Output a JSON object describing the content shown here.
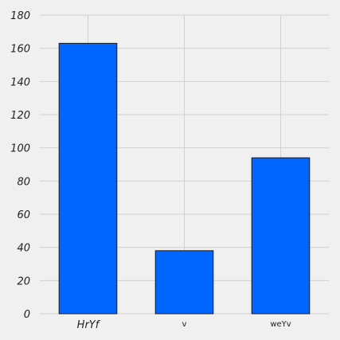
{
  "chart_data": {
    "type": "bar",
    "categories": [
      "HrYf",
      "v",
      "weYv"
    ],
    "values": [
      163,
      38,
      94
    ],
    "title": "",
    "xlabel": "",
    "ylabel": "",
    "ylim": [
      0,
      180
    ],
    "yticks": [
      0,
      20,
      40,
      60,
      80,
      100,
      120,
      140,
      160,
      180
    ],
    "grid": true,
    "bar_color": "#0066ff",
    "background": "#f0f0f0"
  }
}
